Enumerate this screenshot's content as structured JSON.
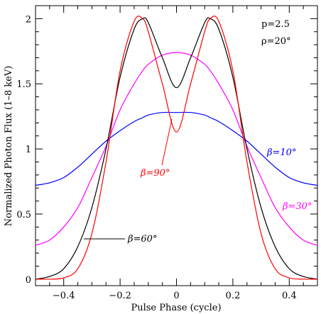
{
  "chart_data": {
    "type": "line",
    "title": "",
    "xlabel": "Pulse Phase (cycle)",
    "ylabel": "Normalized Photon Flux (1–8 keV)",
    "xlim": [
      -0.5,
      0.5
    ],
    "ylim": [
      -0.05,
      2.1
    ],
    "x_ticks": [
      -0.4,
      -0.2,
      0,
      0.2,
      0.4
    ],
    "x_tick_labels": [
      "−0.4",
      "−0.2",
      "0",
      "0.2",
      "0.4"
    ],
    "y_ticks": [
      0,
      0.5,
      1,
      1.5,
      2
    ],
    "y_tick_labels": [
      "0",
      "0.5",
      "1",
      "1.5",
      "2"
    ],
    "grid": false,
    "legend": "none",
    "parameters": [
      "p=2.5",
      "ρ=20°"
    ],
    "x": [
      -0.5,
      -0.45,
      -0.4,
      -0.35,
      -0.3,
      -0.25,
      -0.2,
      -0.15,
      -0.12,
      -0.1,
      -0.05,
      0,
      0.05,
      0.1,
      0.12,
      0.15,
      0.2,
      0.25,
      0.3,
      0.35,
      0.4,
      0.45,
      0.5
    ],
    "series": [
      {
        "name": "β=10°",
        "color": "#0000ff",
        "values": [
          0.72,
          0.74,
          0.78,
          0.86,
          0.96,
          1.06,
          1.14,
          1.21,
          1.24,
          1.26,
          1.28,
          1.28,
          1.28,
          1.26,
          1.24,
          1.21,
          1.14,
          1.06,
          0.96,
          0.86,
          0.78,
          0.74,
          0.72
        ]
      },
      {
        "name": "β=30°",
        "color": "#ff00ff",
        "values": [
          0.26,
          0.3,
          0.4,
          0.55,
          0.78,
          1.02,
          1.3,
          1.5,
          1.6,
          1.65,
          1.72,
          1.74,
          1.72,
          1.65,
          1.6,
          1.5,
          1.3,
          1.02,
          0.78,
          0.55,
          0.4,
          0.3,
          0.26
        ]
      },
      {
        "name": "β=60°",
        "color": "#000000",
        "values": [
          0.0,
          0.02,
          0.08,
          0.25,
          0.55,
          1.0,
          1.55,
          1.92,
          2.0,
          1.97,
          1.7,
          1.47,
          1.7,
          1.97,
          2.0,
          1.92,
          1.55,
          1.0,
          0.55,
          0.25,
          0.08,
          0.02,
          0.0
        ]
      },
      {
        "name": "β=90°",
        "color": "#ff0000",
        "values": [
          0.0,
          0.0,
          0.01,
          0.08,
          0.35,
          0.9,
          1.6,
          1.98,
          2.0,
          1.9,
          1.5,
          1.13,
          1.5,
          1.9,
          2.0,
          1.98,
          1.6,
          0.9,
          0.35,
          0.08,
          0.01,
          0.0,
          0.0
        ]
      }
    ],
    "annotations": [
      {
        "text": "β=10°",
        "color": "#0000ff"
      },
      {
        "text": "β=30°",
        "color": "#ff00ff"
      },
      {
        "text": "β=60°",
        "color": "#000000"
      },
      {
        "text": "β=90°",
        "color": "#ff0000"
      }
    ]
  }
}
